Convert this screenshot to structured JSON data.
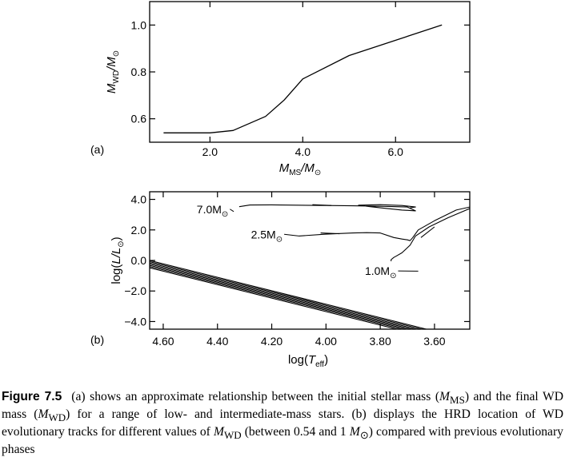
{
  "chart_data": [
    {
      "type": "line",
      "panel_label": "(a)",
      "xlim": [
        0.7,
        7.6
      ],
      "ylim": [
        0.5,
        1.1
      ],
      "xticks": [
        2.0,
        4.0,
        6.0
      ],
      "yticks": [
        0.6,
        0.8,
        1.0
      ],
      "xtick_labels": [
        "2.0",
        "4.0",
        "6.0"
      ],
      "ytick_labels": [
        "0.6",
        "0.8",
        "1.0"
      ],
      "xlabel": {
        "main": "M",
        "sub": "MS",
        "rest": "/M",
        "sun": "⊙"
      },
      "ylabel": {
        "main": "M",
        "sub": "WD",
        "rest": "/M",
        "sun": "⊙"
      },
      "series": [
        {
          "x": [
            1.0,
            2.0,
            2.5,
            3.2,
            3.6,
            4.0,
            5.0,
            7.0
          ],
          "y": [
            0.54,
            0.54,
            0.55,
            0.61,
            0.68,
            0.77,
            0.87,
            1.0
          ]
        }
      ]
    },
    {
      "type": "line",
      "panel_label": "(b)",
      "xlim": [
        4.65,
        3.47
      ],
      "ylim": [
        -4.5,
        4.5
      ],
      "x_reversed": true,
      "xticks": [
        4.6,
        4.4,
        4.2,
        4.0,
        3.8,
        3.6
      ],
      "yticks": [
        4.0,
        2.0,
        0.0,
        -2.0,
        -4.0
      ],
      "xtick_labels": [
        "4.60",
        "4.40",
        "4.20",
        "4.00",
        "3.80",
        "3.60"
      ],
      "ytick_labels": [
        "4.0",
        "2.0",
        "0.0",
        "−2.0",
        "−4.0"
      ],
      "xlabel": {
        "pre": "log(",
        "main": "T",
        "sub": "eff",
        "post": ")"
      },
      "ylabel": {
        "pre": "log(",
        "main": "L",
        "rest": "/L",
        "sun": "⊙",
        "post": ")"
      },
      "wd_tracks": {
        "count": 7,
        "x_start": 4.65,
        "logL_start": 0.0,
        "x_end": 3.63,
        "logL_end": -4.5,
        "logL_step": -0.08
      },
      "evolutionary_tracks": [
        {
          "mass_label": "7.0M",
          "label_x": 4.36,
          "label_y": 3.1,
          "leader_end": [
            4.34,
            3.2
          ],
          "x": [
            4.32,
            4.28,
            4.2,
            4.0,
            3.9,
            3.8,
            3.7,
            3.67,
            3.72,
            3.8,
            3.85,
            3.88,
            3.8,
            3.72,
            3.67,
            3.69
          ],
          "y": [
            3.52,
            3.63,
            3.64,
            3.6,
            3.58,
            3.55,
            3.5,
            3.25,
            3.3,
            3.45,
            3.55,
            3.62,
            3.65,
            3.6,
            3.5,
            3.45
          ]
        },
        {
          "mass_label": "2.5M",
          "label_x": 4.16,
          "label_y": 1.45,
          "leader_end": [
            4.1,
            1.6
          ],
          "x": [
            4.1,
            4.0,
            3.9,
            3.85,
            3.8,
            3.75,
            3.72,
            3.7,
            3.69,
            3.68,
            3.66,
            3.6,
            3.52,
            3.47
          ],
          "y": [
            1.6,
            1.72,
            1.8,
            1.82,
            1.8,
            1.5,
            1.4,
            1.35,
            1.3,
            1.5,
            2.0,
            2.6,
            3.3,
            3.5
          ]
        },
        {
          "mass_label": "1.0M",
          "label_x": 3.74,
          "label_y": -0.95,
          "leader_end": [
            3.66,
            -0.7
          ],
          "x": [
            3.76,
            3.76,
            3.75,
            3.74,
            3.72,
            3.69,
            3.67,
            3.62,
            3.55,
            3.47
          ],
          "y": [
            -0.05,
            0.05,
            0.2,
            0.3,
            0.5,
            1.0,
            1.6,
            2.2,
            2.8,
            3.4
          ]
        }
      ],
      "fragments": [
        {
          "x": [
            4.05,
            3.98
          ],
          "y": [
            3.65,
            3.6
          ]
        },
        {
          "x": [
            4.02,
            3.95
          ],
          "y": [
            1.8,
            1.75
          ]
        },
        {
          "x": [
            3.65,
            3.6
          ],
          "y": [
            1.5,
            2.2
          ]
        }
      ]
    }
  ],
  "caption": {
    "label": "Figure 7.5",
    "p1": "(a) shows an approximate relationship between the initial stellar mass (",
    "ms_main": "M",
    "ms_sub": "MS",
    "p2": ") and the final WD mass (",
    "wd_main": "M",
    "wd_sub": "WD",
    "p3": ") for a range of low- and intermediate-mass stars. (b) displays the HRD location of WD evolutionary tracks for different values of ",
    "wd2_main": "M",
    "wd2_sub": "WD",
    "p4": " (between 0.54 and 1 ",
    "sun_main": "M",
    "sun_sub": "⊙",
    "p5": ") compared with previous evolutionary phases"
  }
}
